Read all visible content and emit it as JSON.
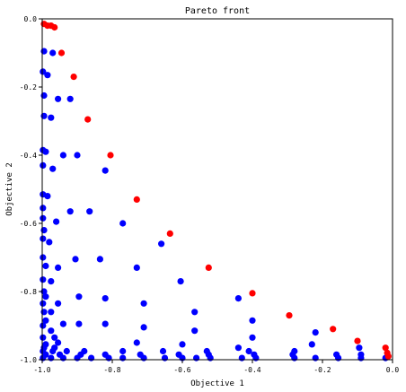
{
  "chart_data": {
    "type": "scatter",
    "title": "Pareto front",
    "xlabel": "Objective 1",
    "ylabel": "Objective 2",
    "xlim": [
      -1.0,
      0.0
    ],
    "ylim": [
      -1.0,
      0.0
    ],
    "xticks": [
      "-1.0",
      "-0.8",
      "-0.6",
      "-0.4",
      "-0.2",
      "0.0"
    ],
    "yticks": [
      "0.0",
      "-0.2",
      "-0.4",
      "-0.6",
      "-0.8",
      "-1.0"
    ],
    "xtick_values": [
      -1.0,
      -0.8,
      -0.6,
      -0.4,
      -0.2,
      0.0
    ],
    "ytick_values": [
      0.0,
      -0.2,
      -0.4,
      -0.6,
      -0.8,
      -1.0
    ],
    "grid": false,
    "legend": "none",
    "series": [
      {
        "color": "#0000ff",
        "points": [
          [
            -0.995,
            -0.095
          ],
          [
            -0.97,
            -0.1
          ],
          [
            -0.998,
            -0.155
          ],
          [
            -0.985,
            -0.165
          ],
          [
            -0.995,
            -0.225
          ],
          [
            -0.955,
            -0.235
          ],
          [
            -0.92,
            -0.235
          ],
          [
            -0.995,
            -0.285
          ],
          [
            -0.975,
            -0.29
          ],
          [
            -0.998,
            -0.385
          ],
          [
            -0.99,
            -0.39
          ],
          [
            -0.94,
            -0.4
          ],
          [
            -0.9,
            -0.4
          ],
          [
            -0.998,
            -0.43
          ],
          [
            -0.97,
            -0.44
          ],
          [
            -0.82,
            -0.445
          ],
          [
            -0.998,
            -0.515
          ],
          [
            -0.985,
            -0.52
          ],
          [
            -0.998,
            -0.555
          ],
          [
            -0.92,
            -0.565
          ],
          [
            -0.865,
            -0.565
          ],
          [
            -0.998,
            -0.585
          ],
          [
            -0.96,
            -0.595
          ],
          [
            -0.77,
            -0.6
          ],
          [
            -0.995,
            -0.62
          ],
          [
            -0.998,
            -0.645
          ],
          [
            -0.98,
            -0.655
          ],
          [
            -0.66,
            -0.66
          ],
          [
            -0.998,
            -0.7
          ],
          [
            -0.905,
            -0.705
          ],
          [
            -0.835,
            -0.705
          ],
          [
            -0.99,
            -0.725
          ],
          [
            -0.955,
            -0.73
          ],
          [
            -0.73,
            -0.73
          ],
          [
            -0.998,
            -0.765
          ],
          [
            -0.975,
            -0.77
          ],
          [
            -0.605,
            -0.77
          ],
          [
            -0.995,
            -0.8
          ],
          [
            -0.99,
            -0.815
          ],
          [
            -0.895,
            -0.815
          ],
          [
            -0.82,
            -0.82
          ],
          [
            -0.44,
            -0.82
          ],
          [
            -0.998,
            -0.835
          ],
          [
            -0.955,
            -0.835
          ],
          [
            -0.71,
            -0.835
          ],
          [
            -0.995,
            -0.86
          ],
          [
            -0.975,
            -0.86
          ],
          [
            -0.565,
            -0.86
          ],
          [
            -0.99,
            -0.885
          ],
          [
            -0.4,
            -0.885
          ],
          [
            -0.998,
            -0.9
          ],
          [
            -0.94,
            -0.895
          ],
          [
            -0.895,
            -0.895
          ],
          [
            -0.82,
            -0.895
          ],
          [
            -0.71,
            -0.905
          ],
          [
            -0.975,
            -0.915
          ],
          [
            -0.565,
            -0.915
          ],
          [
            -0.22,
            -0.92
          ],
          [
            -0.998,
            -0.935
          ],
          [
            -0.965,
            -0.935
          ],
          [
            -0.4,
            -0.935
          ],
          [
            -0.99,
            -0.955
          ],
          [
            -0.955,
            -0.95
          ],
          [
            -0.73,
            -0.95
          ],
          [
            -0.6,
            -0.955
          ],
          [
            -0.23,
            -0.955
          ],
          [
            -0.995,
            -0.965
          ],
          [
            -0.965,
            -0.965
          ],
          [
            -0.44,
            -0.965
          ],
          [
            -0.095,
            -0.965
          ],
          [
            -0.998,
            -0.975
          ],
          [
            -0.97,
            -0.975
          ],
          [
            -0.93,
            -0.975
          ],
          [
            -0.88,
            -0.975
          ],
          [
            -0.77,
            -0.975
          ],
          [
            -0.655,
            -0.975
          ],
          [
            -0.53,
            -0.975
          ],
          [
            -0.41,
            -0.975
          ],
          [
            -0.28,
            -0.975
          ],
          [
            -0.99,
            -0.985
          ],
          [
            -0.95,
            -0.985
          ],
          [
            -0.89,
            -0.985
          ],
          [
            -0.82,
            -0.985
          ],
          [
            -0.72,
            -0.985
          ],
          [
            -0.61,
            -0.985
          ],
          [
            -0.525,
            -0.985
          ],
          [
            -0.395,
            -0.985
          ],
          [
            -0.285,
            -0.985
          ],
          [
            -0.16,
            -0.985
          ],
          [
            -0.09,
            -0.985
          ],
          [
            -0.998,
            -0.995
          ],
          [
            -0.975,
            -0.995
          ],
          [
            -0.94,
            -0.995
          ],
          [
            -0.9,
            -0.995
          ],
          [
            -0.86,
            -0.995
          ],
          [
            -0.81,
            -0.995
          ],
          [
            -0.77,
            -0.995
          ],
          [
            -0.71,
            -0.995
          ],
          [
            -0.65,
            -0.995
          ],
          [
            -0.6,
            -0.995
          ],
          [
            -0.56,
            -0.995
          ],
          [
            -0.52,
            -0.995
          ],
          [
            -0.43,
            -0.995
          ],
          [
            -0.39,
            -0.995
          ],
          [
            -0.28,
            -0.995
          ],
          [
            -0.22,
            -0.995
          ],
          [
            -0.155,
            -0.995
          ],
          [
            -0.09,
            -0.995
          ],
          [
            -0.02,
            -0.995
          ]
        ]
      },
      {
        "color": "#ff0000",
        "points": [
          [
            -0.995,
            -0.015
          ],
          [
            -0.985,
            -0.02
          ],
          [
            -0.975,
            -0.02
          ],
          [
            -0.965,
            -0.025
          ],
          [
            -0.945,
            -0.1
          ],
          [
            -0.91,
            -0.17
          ],
          [
            -0.87,
            -0.295
          ],
          [
            -0.805,
            -0.4
          ],
          [
            -0.73,
            -0.53
          ],
          [
            -0.635,
            -0.63
          ],
          [
            -0.525,
            -0.73
          ],
          [
            -0.4,
            -0.805
          ],
          [
            -0.295,
            -0.87
          ],
          [
            -0.17,
            -0.91
          ],
          [
            -0.1,
            -0.945
          ],
          [
            -0.02,
            -0.965
          ],
          [
            -0.015,
            -0.98
          ],
          [
            -0.012,
            -0.99
          ]
        ]
      }
    ]
  }
}
